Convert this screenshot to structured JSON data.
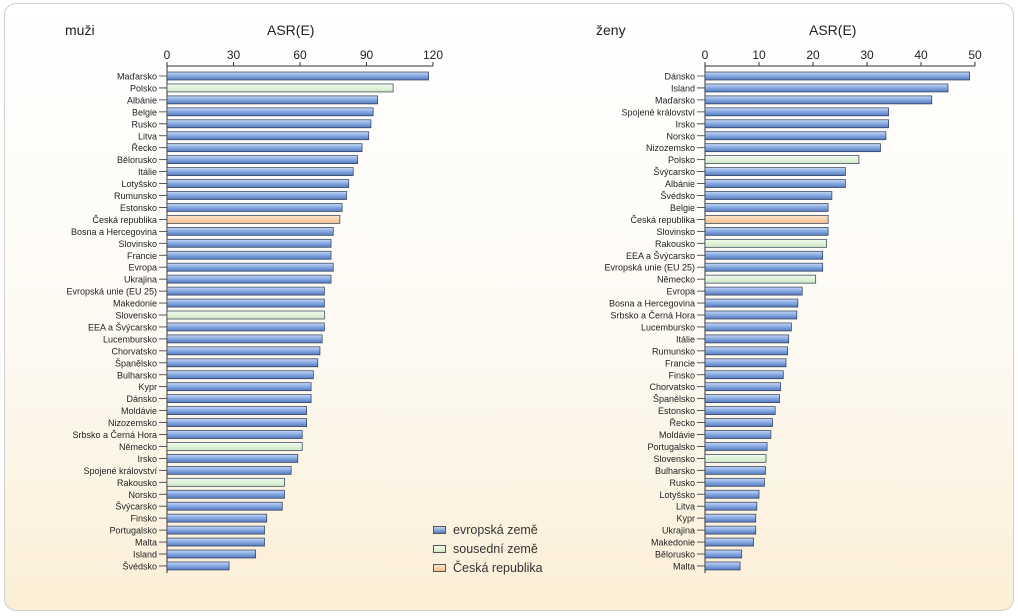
{
  "chart_data": [
    {
      "type": "bar",
      "orientation": "horizontal",
      "panel_label": "muži",
      "title": "ASR(E)",
      "xlim": [
        0,
        120
      ],
      "ticks": [
        "0",
        "30",
        "60",
        "90",
        "120"
      ],
      "categories": [
        "Maďarsko",
        "Polsko",
        "Albánie",
        "Belgie",
        "Rusko",
        "Litva",
        "Řecko",
        "Bělorusko",
        "Itálie",
        "Lotyšsko",
        "Rumunsko",
        "Estonsko",
        "Česká republika",
        "Bosna a Hercegovina",
        "Slovinsko",
        "Francie",
        "Evropa",
        "Ukrajina",
        "Evropská unie (EU 25)",
        "Makedonie",
        "Slovensko",
        "EEA a Švýcarsko",
        "Lucembursko",
        "Chorvatsko",
        "Španělsko",
        "Bulharsko",
        "Kypr",
        "Dánsko",
        "Moldávie",
        "Nizozemsko",
        "Srbsko a Černá Hora",
        "Německo",
        "Irsko",
        "Spojené království",
        "Rakousko",
        "Norsko",
        "Švýcarsko",
        "Finsko",
        "Portugalsko",
        "Malta",
        "Island",
        "Švédsko"
      ],
      "values": [
        118,
        102,
        95,
        93,
        92,
        91,
        88,
        86,
        84,
        82,
        81,
        79,
        78,
        75,
        74,
        74,
        75,
        74,
        71,
        71,
        71,
        71,
        70,
        69,
        68,
        66,
        65,
        65,
        63,
        63,
        61,
        61,
        59,
        56,
        53,
        53,
        52,
        45,
        44,
        44,
        40,
        28
      ],
      "groups": [
        "e",
        "s",
        "e",
        "e",
        "e",
        "e",
        "e",
        "e",
        "e",
        "e",
        "e",
        "e",
        "c",
        "e",
        "e",
        "e",
        "e",
        "e",
        "e",
        "e",
        "s",
        "e",
        "e",
        "e",
        "e",
        "e",
        "e",
        "e",
        "e",
        "e",
        "e",
        "s",
        "e",
        "e",
        "s",
        "e",
        "e",
        "e",
        "e",
        "e",
        "e",
        "e"
      ]
    },
    {
      "type": "bar",
      "orientation": "horizontal",
      "panel_label": "ženy",
      "title": "ASR(E)",
      "xlim": [
        0,
        50
      ],
      "ticks": [
        "0",
        "10",
        "20",
        "30",
        "40",
        "50"
      ],
      "categories": [
        "Dánsko",
        "Island",
        "Maďarsko",
        "Spojené království",
        "Irsko",
        "Norsko",
        "Nizozemsko",
        "Polsko",
        "Švýcarsko",
        "Albánie",
        "Švédsko",
        "Belgie",
        "Česká republika",
        "Slovinsko",
        "Rakousko",
        "EEA a Švýcarsko",
        "Evropská unie (EU 25)",
        "Německo",
        "Evropa",
        "Bosna a Hercegovina",
        "Srbsko a Černá Hora",
        "Lucembursko",
        "Itálie",
        "Rumunsko",
        "Francie",
        "Finsko",
        "Chorvatsko",
        "Španělsko",
        "Estonsko",
        "Řecko",
        "Moldávie",
        "Portugalsko",
        "Slovensko",
        "Bulharsko",
        "Rusko",
        "Lotyšsko",
        "Litva",
        "Kypr",
        "Ukrajina",
        "Makedonie",
        "Bělorusko",
        "Malta"
      ],
      "values": [
        49,
        45,
        42,
        34,
        34,
        33.5,
        32.5,
        28.5,
        26,
        26,
        23.5,
        22.8,
        22.8,
        22.8,
        22.5,
        21.8,
        21.8,
        20.5,
        18,
        17.2,
        17,
        16,
        15.5,
        15.3,
        15,
        14.5,
        14,
        13.8,
        13,
        12.5,
        12.2,
        11.5,
        11.3,
        11.2,
        11,
        10,
        9.6,
        9.4,
        9.4,
        9,
        6.8,
        6.5
      ],
      "groups": [
        "e",
        "e",
        "e",
        "e",
        "e",
        "e",
        "e",
        "s",
        "e",
        "e",
        "e",
        "e",
        "c",
        "e",
        "s",
        "e",
        "e",
        "s",
        "e",
        "e",
        "e",
        "e",
        "e",
        "e",
        "e",
        "e",
        "e",
        "e",
        "e",
        "e",
        "e",
        "e",
        "s",
        "e",
        "e",
        "e",
        "e",
        "e",
        "e",
        "e",
        "e",
        "e"
      ]
    }
  ],
  "legend": [
    {
      "key": "e",
      "label": "evropská země",
      "color": "#7fa3dd"
    },
    {
      "key": "s",
      "label": "sousední země",
      "color": "#dff2d8"
    },
    {
      "key": "c",
      "label": "Česká republika",
      "color": "#f8d1a8"
    }
  ]
}
